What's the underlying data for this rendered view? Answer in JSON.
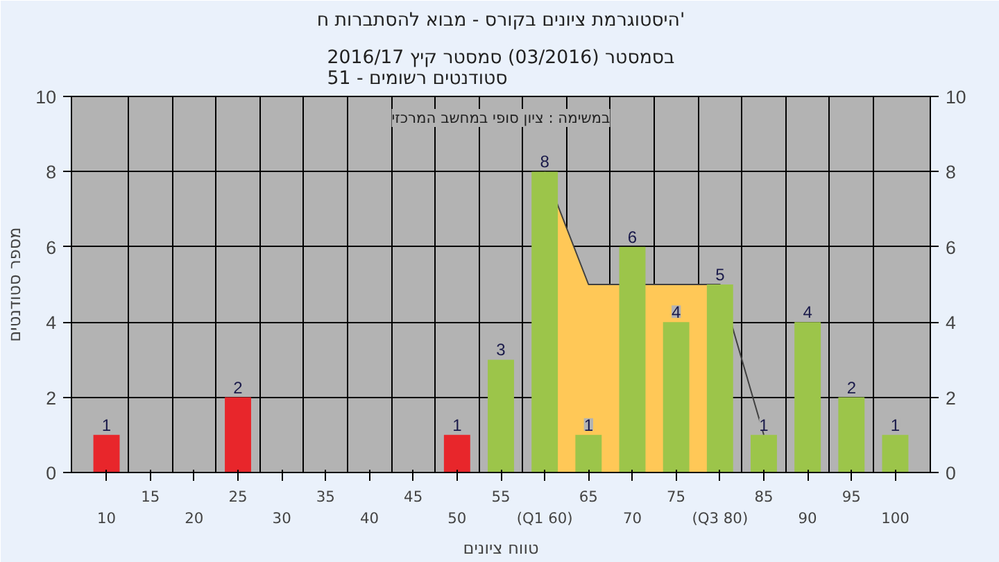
{
  "chart_data": {
    "type": "bar",
    "title": "היסטוגרמת ציונים בקורס - מבוא להסתברות ח'",
    "subtitle": "בסמסטר (03/2016) סמסטר קיץ 2016/17\nסטודנטים רשומים - 51",
    "xlabel": "טווח ציונים",
    "ylabel": "מספר סטודנטים",
    "annotations": [
      "במשימה : ציון סופי במחשב המרכזי"
    ],
    "categories": [
      "10",
      "15",
      "20",
      "25",
      "30",
      "35",
      "40",
      "45",
      "50",
      "55",
      "(Q1 60)",
      "65",
      "70",
      "75",
      "(Q3 80)",
      "85",
      "90",
      "95",
      "100"
    ],
    "series": [
      {
        "type": "area",
        "color": "#ffc857",
        "values": [
          null,
          null,
          null,
          null,
          null,
          null,
          null,
          null,
          null,
          null,
          8,
          5,
          null,
          5,
          5,
          null,
          null,
          null,
          null
        ]
      },
      {
        "type": "line",
        "color": "#404040",
        "values": [
          null,
          null,
          null,
          null,
          null,
          null,
          null,
          null,
          null,
          null,
          8,
          5,
          null,
          5,
          5,
          1,
          null,
          null,
          null
        ]
      },
      {
        "colors": [
          "#e8262b",
          null,
          null,
          "#e8262b",
          null,
          null,
          null,
          null,
          "#e8262b",
          "#9cc54a",
          "#9cc54a",
          "#9cc54a",
          "#9cc54a",
          "#9cc54a",
          "#9cc54a",
          "#9cc54a",
          "#9cc54a",
          "#9cc54a",
          "#9cc54a"
        ],
        "values": [
          1,
          null,
          null,
          2,
          null,
          null,
          null,
          null,
          1,
          3,
          8,
          1,
          6,
          4,
          5,
          1,
          4,
          2,
          1
        ],
        "value_labels": [
          "1",
          null,
          null,
          "2",
          null,
          null,
          null,
          null,
          "1",
          "3",
          "8",
          "1",
          "6",
          "4",
          "5",
          "1",
          "4",
          "2",
          "1"
        ]
      }
    ],
    "ylim": [
      0,
      10
    ],
    "yticks": [
      0,
      2,
      4,
      6,
      8,
      10
    ],
    "y2lim": [
      0,
      10
    ],
    "y2ticks": [
      0,
      2,
      4,
      6,
      8,
      10
    ],
    "grid": true
  }
}
